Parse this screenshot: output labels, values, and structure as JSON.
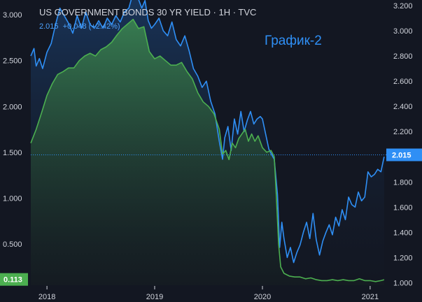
{
  "chart_data": {
    "type": "area",
    "title": "US GOVERNMENT BONDS 30 YR YIELD · 1H · TVC",
    "quote": "2.015  +0.048 (+2.42%)",
    "annotation": "График-2",
    "x_ticks": [
      "2018",
      "2019",
      "2020",
      "2021"
    ],
    "left_axis": {
      "ticks": [
        "3.000",
        "2.500",
        "2.000",
        "1.500",
        "1.000",
        "0.500"
      ],
      "range": [
        0.05,
        3.1
      ],
      "last_value_label": "0.113"
    },
    "right_axis": {
      "ticks": [
        "3.200",
        "3.000",
        "2.800",
        "2.600",
        "2.400",
        "2.200",
        "2.000",
        "1.800",
        "1.600",
        "1.400",
        "1.200",
        "1.000"
      ],
      "range": [
        0.98,
        3.2
      ],
      "last_value_label": "2.015"
    },
    "x_range": [
      2017.85,
      2021.15
    ],
    "series": [
      {
        "axis": "right",
        "color": "#2f8ff5",
        "points": [
          [
            2017.85,
            2.8
          ],
          [
            2017.88,
            2.86
          ],
          [
            2017.9,
            2.72
          ],
          [
            2017.93,
            2.78
          ],
          [
            2017.96,
            2.7
          ],
          [
            2018.0,
            2.83
          ],
          [
            2018.04,
            2.9
          ],
          [
            2018.08,
            3.05
          ],
          [
            2018.12,
            3.18
          ],
          [
            2018.16,
            3.12
          ],
          [
            2018.2,
            3.06
          ],
          [
            2018.24,
            2.98
          ],
          [
            2018.28,
            3.12
          ],
          [
            2018.32,
            3.02
          ],
          [
            2018.36,
            3.15
          ],
          [
            2018.4,
            3.05
          ],
          [
            2018.44,
            3.02
          ],
          [
            2018.48,
            3.08
          ],
          [
            2018.52,
            3.02
          ],
          [
            2018.56,
            3.1
          ],
          [
            2018.6,
            3.05
          ],
          [
            2018.64,
            3.12
          ],
          [
            2018.68,
            3.07
          ],
          [
            2018.72,
            3.15
          ],
          [
            2018.76,
            3.18
          ],
          [
            2018.8,
            3.3
          ],
          [
            2018.82,
            3.38
          ],
          [
            2018.85,
            3.25
          ],
          [
            2018.88,
            3.18
          ],
          [
            2018.91,
            3.24
          ],
          [
            2018.94,
            3.08
          ],
          [
            2018.97,
            3.02
          ],
          [
            2019.0,
            3.05
          ],
          [
            2019.04,
            3.1
          ],
          [
            2019.08,
            3.0
          ],
          [
            2019.12,
            2.96
          ],
          [
            2019.16,
            3.07
          ],
          [
            2019.2,
            2.93
          ],
          [
            2019.24,
            2.88
          ],
          [
            2019.28,
            2.96
          ],
          [
            2019.32,
            2.84
          ],
          [
            2019.36,
            2.7
          ],
          [
            2019.4,
            2.64
          ],
          [
            2019.44,
            2.55
          ],
          [
            2019.48,
            2.6
          ],
          [
            2019.52,
            2.44
          ],
          [
            2019.56,
            2.34
          ],
          [
            2019.6,
            2.12
          ],
          [
            2019.63,
            1.98
          ],
          [
            2019.65,
            2.15
          ],
          [
            2019.68,
            2.24
          ],
          [
            2019.71,
            2.05
          ],
          [
            2019.74,
            2.3
          ],
          [
            2019.77,
            2.18
          ],
          [
            2019.8,
            2.36
          ],
          [
            2019.83,
            2.2
          ],
          [
            2019.86,
            2.29
          ],
          [
            2019.89,
            2.36
          ],
          [
            2019.92,
            2.26
          ],
          [
            2019.95,
            2.3
          ],
          [
            2019.98,
            2.32
          ],
          [
            2020.0,
            2.3
          ],
          [
            2020.03,
            2.18
          ],
          [
            2020.06,
            2.06
          ],
          [
            2020.09,
            2.01
          ],
          [
            2020.11,
            1.98
          ],
          [
            2020.14,
            1.7
          ],
          [
            2020.16,
            1.28
          ],
          [
            2020.18,
            1.48
          ],
          [
            2020.2,
            1.35
          ],
          [
            2020.23,
            1.2
          ],
          [
            2020.26,
            1.28
          ],
          [
            2020.29,
            1.16
          ],
          [
            2020.32,
            1.24
          ],
          [
            2020.35,
            1.3
          ],
          [
            2020.38,
            1.4
          ],
          [
            2020.41,
            1.48
          ],
          [
            2020.44,
            1.35
          ],
          [
            2020.47,
            1.55
          ],
          [
            2020.5,
            1.34
          ],
          [
            2020.53,
            1.22
          ],
          [
            2020.56,
            1.33
          ],
          [
            2020.59,
            1.4
          ],
          [
            2020.62,
            1.46
          ],
          [
            2020.65,
            1.38
          ],
          [
            2020.68,
            1.52
          ],
          [
            2020.71,
            1.45
          ],
          [
            2020.74,
            1.58
          ],
          [
            2020.77,
            1.5
          ],
          [
            2020.8,
            1.68
          ],
          [
            2020.83,
            1.62
          ],
          [
            2020.86,
            1.6
          ],
          [
            2020.89,
            1.72
          ],
          [
            2020.92,
            1.65
          ],
          [
            2020.95,
            1.68
          ],
          [
            2020.98,
            1.88
          ],
          [
            2021.01,
            1.84
          ],
          [
            2021.04,
            1.86
          ],
          [
            2021.07,
            1.9
          ],
          [
            2021.1,
            1.88
          ],
          [
            2021.13,
            2.0
          ]
        ]
      },
      {
        "axis": "left",
        "color": "#4caf50",
        "points": [
          [
            2017.85,
            1.6
          ],
          [
            2017.9,
            1.75
          ],
          [
            2017.95,
            1.93
          ],
          [
            2018.0,
            2.12
          ],
          [
            2018.05,
            2.25
          ],
          [
            2018.1,
            2.35
          ],
          [
            2018.15,
            2.38
          ],
          [
            2018.2,
            2.42
          ],
          [
            2018.25,
            2.42
          ],
          [
            2018.3,
            2.5
          ],
          [
            2018.35,
            2.55
          ],
          [
            2018.4,
            2.58
          ],
          [
            2018.45,
            2.55
          ],
          [
            2018.5,
            2.62
          ],
          [
            2018.55,
            2.65
          ],
          [
            2018.6,
            2.7
          ],
          [
            2018.65,
            2.78
          ],
          [
            2018.7,
            2.85
          ],
          [
            2018.75,
            2.9
          ],
          [
            2018.8,
            2.95
          ],
          [
            2018.85,
            2.85
          ],
          [
            2018.9,
            2.87
          ],
          [
            2018.95,
            2.6
          ],
          [
            2019.0,
            2.52
          ],
          [
            2019.05,
            2.55
          ],
          [
            2019.1,
            2.5
          ],
          [
            2019.15,
            2.45
          ],
          [
            2019.2,
            2.45
          ],
          [
            2019.25,
            2.48
          ],
          [
            2019.3,
            2.38
          ],
          [
            2019.35,
            2.3
          ],
          [
            2019.4,
            2.15
          ],
          [
            2019.45,
            2.05
          ],
          [
            2019.5,
            2.0
          ],
          [
            2019.55,
            1.92
          ],
          [
            2019.6,
            1.75
          ],
          [
            2019.63,
            1.48
          ],
          [
            2019.66,
            1.52
          ],
          [
            2019.69,
            1.42
          ],
          [
            2019.72,
            1.6
          ],
          [
            2019.75,
            1.55
          ],
          [
            2019.78,
            1.65
          ],
          [
            2019.81,
            1.7
          ],
          [
            2019.84,
            1.75
          ],
          [
            2019.87,
            1.62
          ],
          [
            2019.9,
            1.7
          ],
          [
            2019.93,
            1.62
          ],
          [
            2019.96,
            1.68
          ],
          [
            2020.0,
            1.55
          ],
          [
            2020.04,
            1.5
          ],
          [
            2020.08,
            1.52
          ],
          [
            2020.11,
            1.45
          ],
          [
            2020.13,
            1.0
          ],
          [
            2020.15,
            0.5
          ],
          [
            2020.17,
            0.25
          ],
          [
            2020.2,
            0.18
          ],
          [
            2020.25,
            0.15
          ],
          [
            2020.3,
            0.14
          ],
          [
            2020.35,
            0.14
          ],
          [
            2020.4,
            0.12
          ],
          [
            2020.45,
            0.13
          ],
          [
            2020.5,
            0.11
          ],
          [
            2020.55,
            0.1
          ],
          [
            2020.6,
            0.1
          ],
          [
            2020.65,
            0.11
          ],
          [
            2020.7,
            0.1
          ],
          [
            2020.75,
            0.11
          ],
          [
            2020.8,
            0.1
          ],
          [
            2020.85,
            0.1
          ],
          [
            2020.9,
            0.12
          ],
          [
            2020.95,
            0.1
          ],
          [
            2021.0,
            0.1
          ],
          [
            2021.05,
            0.09
          ],
          [
            2021.1,
            0.1
          ],
          [
            2021.13,
            0.11
          ]
        ]
      }
    ]
  }
}
